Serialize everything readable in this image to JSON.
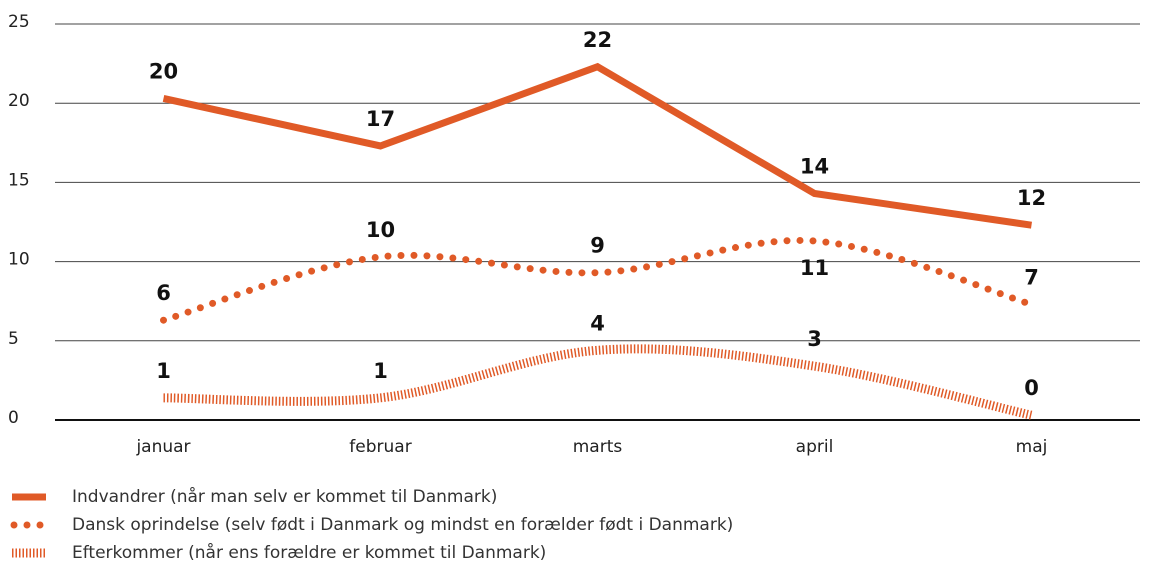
{
  "chart_data": {
    "type": "line",
    "categories": [
      "januar",
      "februar",
      "marts",
      "april",
      "maj"
    ],
    "series": [
      {
        "name": "Indvandrer (når man selv er kommet til Danmark)",
        "color": "#e05a27",
        "style": "solid",
        "values": [
          20.3,
          17.3,
          22.3,
          14.3,
          12.3
        ],
        "value_labels": [
          "20",
          "17",
          "22",
          "14",
          "12"
        ]
      },
      {
        "name": "Dansk oprindelse (selv født i Danmark og mindst en forælder født i Danmark)",
        "color": "#e05a27",
        "style": "dotted",
        "values": [
          6.3,
          10.3,
          9.3,
          11.3,
          7.3
        ],
        "value_labels": [
          "6",
          "10",
          "9",
          "11",
          "7"
        ]
      },
      {
        "name": "Efterkommer (når ens forældre er kommet til Danmark)",
        "color": "#e05a27",
        "style": "hatched",
        "values": [
          1.4,
          1.4,
          4.4,
          3.4,
          0.3
        ],
        "value_labels": [
          "1",
          "1",
          "4",
          "3",
          "0"
        ]
      }
    ],
    "ylim": [
      0,
      25
    ],
    "yticks": [
      0,
      5,
      10,
      15,
      20,
      25
    ],
    "grid": true,
    "legend": "bottom"
  }
}
